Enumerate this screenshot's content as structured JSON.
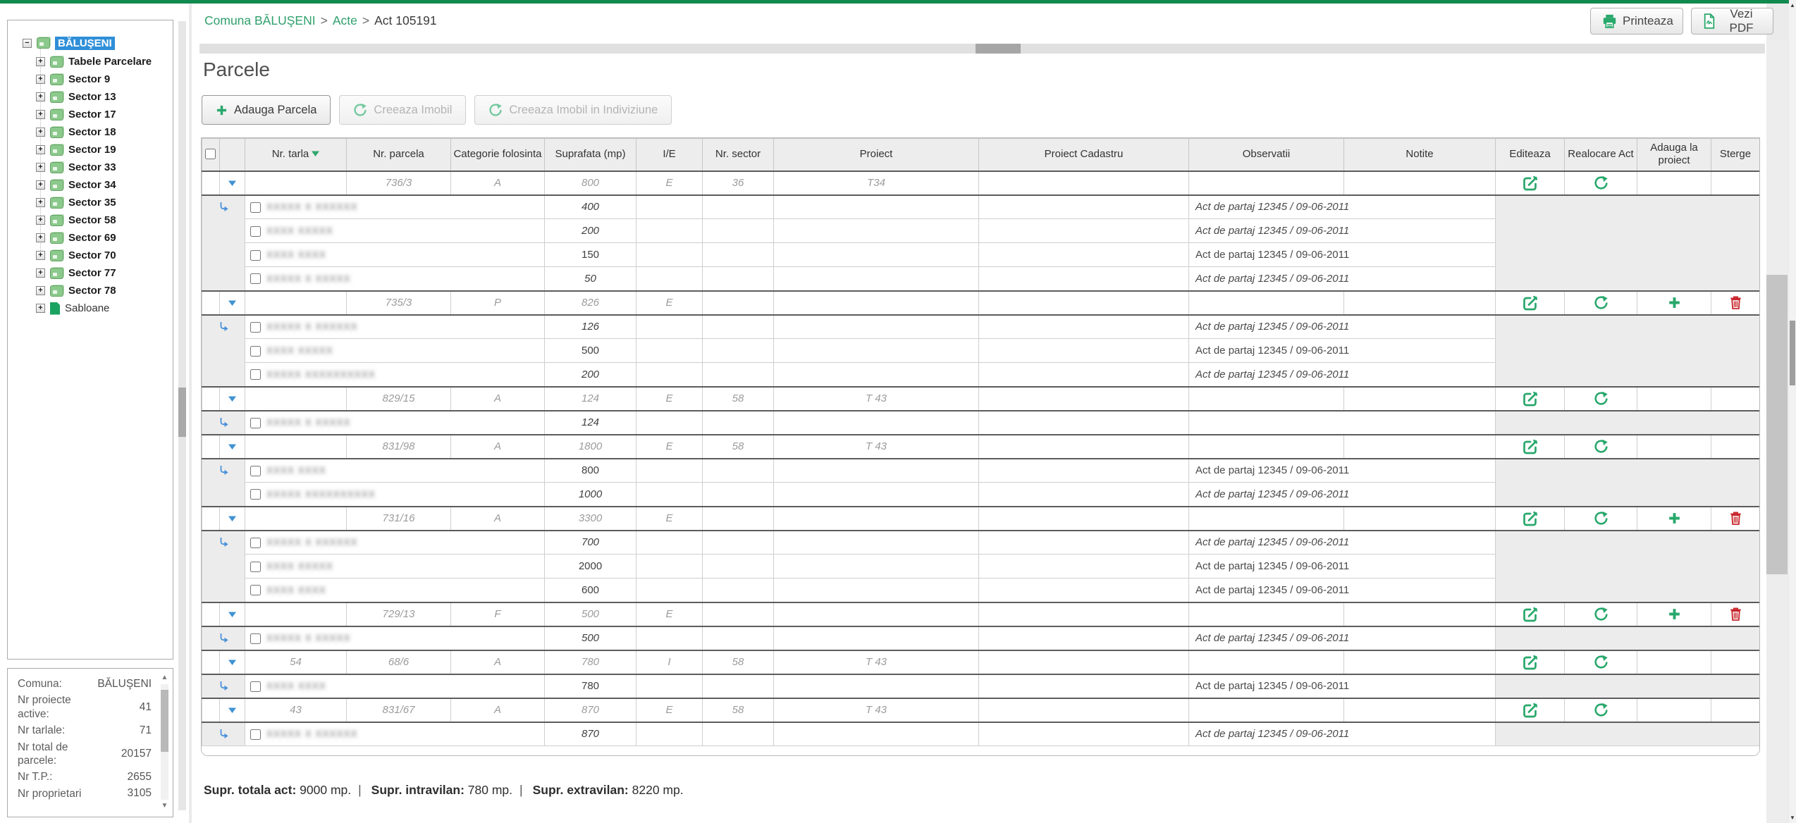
{
  "colors": {
    "accent_green": "#28a86b",
    "link_green": "#2fa06c",
    "selected_blue": "#2f8fd8",
    "delete_red": "#c8272d",
    "top_bar": "#118a4f"
  },
  "breadcrumb": {
    "separator": ">",
    "items": [
      {
        "label": "Comuna BĂLUŞENI",
        "link": true
      },
      {
        "label": "Acte",
        "link": true
      },
      {
        "label": "Act 105191",
        "link": false
      }
    ]
  },
  "header_actions": [
    {
      "label": "Printeaza",
      "icon": "printer-icon"
    },
    {
      "label": "Vezi PDF",
      "icon": "pdf-icon"
    }
  ],
  "sidebar": {
    "tree": {
      "root": {
        "label": "BĂLUŞENI",
        "icon": "folder-stack-icon",
        "expander": "-",
        "selected": true
      },
      "items": [
        {
          "label": "Tabele Parcelare",
          "icon": "folder-stack-icon",
          "bold": true
        },
        {
          "label": "Sector 9",
          "icon": "folder-stack-icon",
          "bold": true
        },
        {
          "label": "Sector 13",
          "icon": "folder-stack-icon",
          "bold": true
        },
        {
          "label": "Sector 17",
          "icon": "folder-stack-icon",
          "bold": true
        },
        {
          "label": "Sector 18",
          "icon": "folder-stack-icon",
          "bold": true
        },
        {
          "label": "Sector 19",
          "icon": "folder-stack-icon",
          "bold": true
        },
        {
          "label": "Sector 33",
          "icon": "folder-stack-icon",
          "bold": true
        },
        {
          "label": "Sector 34",
          "icon": "folder-stack-icon",
          "bold": true
        },
        {
          "label": "Sector 35",
          "icon": "folder-stack-icon",
          "bold": true
        },
        {
          "label": "Sector 58",
          "icon": "folder-stack-icon",
          "bold": true
        },
        {
          "label": "Sector 69",
          "icon": "folder-stack-icon",
          "bold": true
        },
        {
          "label": "Sector 70",
          "icon": "folder-stack-icon",
          "bold": true
        },
        {
          "label": "Sector 77",
          "icon": "folder-stack-icon",
          "bold": true
        },
        {
          "label": "Sector 78",
          "icon": "folder-stack-icon",
          "bold": true
        },
        {
          "label": "Sabloane",
          "icon": "document-icon",
          "bold": false
        }
      ]
    },
    "stats": {
      "rows": [
        {
          "label": "Comuna:",
          "value": "BĂLUŞENI"
        },
        {
          "label": "Nr proiecte active:",
          "value": "41"
        },
        {
          "label": "Nr tarlale:",
          "value": "71"
        },
        {
          "label": "Nr total de parcele:",
          "value": "20157"
        },
        {
          "label": "Nr T.P.:",
          "value": "2655"
        },
        {
          "label": "Nr proprietari",
          "value": "3105"
        }
      ]
    }
  },
  "main": {
    "title": "Parcele",
    "toolbar": [
      {
        "label": "Adauga Parcela",
        "icon": "plus-icon",
        "enabled": true
      },
      {
        "label": "Creeaza Imobil",
        "icon": "create-imobil-icon",
        "enabled": false
      },
      {
        "label": "Creeaza Imobil in Indiviziune",
        "icon": "create-imobil-icon",
        "enabled": false
      }
    ],
    "table": {
      "columns": [
        "",
        "",
        "Nr. tarla",
        "Nr. parcela",
        "Categorie folosinta",
        "Suprafata (mp)",
        "I/E",
        "Nr. sector",
        "Proiect",
        "Proiect Cadastru",
        "Observatii",
        "Notite",
        "Editeaza",
        "Realocare Act",
        "Adauga la proiect",
        "Sterge"
      ],
      "sort_column": "Nr. tarla",
      "groups": [
        {
          "tarla": "",
          "parcela": "736/3",
          "categorie": "A",
          "suprafata": "800",
          "ie": "E",
          "sector": "36",
          "proiect": "T34",
          "proiect_cadastru": "",
          "notite": "",
          "can_add": false,
          "can_delete": false,
          "owners": [
            {
              "name": "XXXXX X XXXXXX",
              "suprafata": "400",
              "observatii": "Act de partaj 12345 / 09-06-2011",
              "italic": true
            },
            {
              "name": "XXXX XXXXX",
              "suprafata": "200",
              "observatii": "Act de partaj 12345 / 09-06-2011",
              "italic": true
            },
            {
              "name": "XXXX XXXX",
              "suprafata": "150",
              "observatii": "Act de partaj 12345 / 09-06-2011",
              "italic": false
            },
            {
              "name": "XXXXX X XXXXX",
              "suprafata": "50",
              "observatii": "Act de partaj 12345 / 09-06-2011",
              "italic": true
            }
          ]
        },
        {
          "tarla": "",
          "parcela": "735/3",
          "categorie": "P",
          "suprafata": "826",
          "ie": "E",
          "sector": "",
          "proiect": "",
          "proiect_cadastru": "",
          "notite": "",
          "can_add": true,
          "can_delete": true,
          "owners": [
            {
              "name": "XXXXX X XXXXXX",
              "suprafata": "126",
              "observatii": "Act de partaj 12345 / 09-06-2011",
              "italic": true
            },
            {
              "name": "XXXX XXXXX",
              "suprafata": "500",
              "observatii": "Act de partaj 12345 / 09-06-2011",
              "italic": false
            },
            {
              "name": "XXXXX XXXXXXXXXX",
              "suprafata": "200",
              "observatii": "Act de partaj 12345 / 09-06-2011",
              "italic": true
            }
          ]
        },
        {
          "tarla": "",
          "parcela": "829/15",
          "categorie": "A",
          "suprafata": "124",
          "ie": "E",
          "sector": "58",
          "proiect": "T 43",
          "proiect_cadastru": "",
          "notite": "",
          "can_add": false,
          "can_delete": false,
          "owners": [
            {
              "name": "XXXXX X XXXXX",
              "suprafata": "124",
              "observatii": "",
              "italic": true
            }
          ]
        },
        {
          "tarla": "",
          "parcela": "831/98",
          "categorie": "A",
          "suprafata": "1800",
          "ie": "E",
          "sector": "58",
          "proiect": "T 43",
          "proiect_cadastru": "",
          "notite": "",
          "can_add": false,
          "can_delete": false,
          "owners": [
            {
              "name": "XXXX XXXX",
              "suprafata": "800",
              "observatii": "Act de partaj 12345 / 09-06-2011",
              "italic": false
            },
            {
              "name": "XXXXX XXXXXXXXXX",
              "suprafata": "1000",
              "observatii": "Act de partaj 12345 / 09-06-2011",
              "italic": true
            }
          ]
        },
        {
          "tarla": "",
          "parcela": "731/16",
          "categorie": "A",
          "suprafata": "3300",
          "ie": "E",
          "sector": "",
          "proiect": "",
          "proiect_cadastru": "",
          "notite": "",
          "can_add": true,
          "can_delete": true,
          "owners": [
            {
              "name": "XXXXX X XXXXXX",
              "suprafata": "700",
              "observatii": "Act de partaj 12345 / 09-06-2011",
              "italic": true
            },
            {
              "name": "XXXX XXXXX",
              "suprafata": "2000",
              "observatii": "Act de partaj 12345 / 09-06-2011",
              "italic": false
            },
            {
              "name": "XXXX XXXX",
              "suprafata": "600",
              "observatii": "Act de partaj 12345 / 09-06-2011",
              "italic": false
            }
          ]
        },
        {
          "tarla": "",
          "parcela": "729/13",
          "categorie": "F",
          "suprafata": "500",
          "ie": "E",
          "sector": "",
          "proiect": "",
          "proiect_cadastru": "",
          "notite": "",
          "can_add": true,
          "can_delete": true,
          "owners": [
            {
              "name": "XXXXX X XXXXX",
              "suprafata": "500",
              "observatii": "Act de partaj 12345 / 09-06-2011",
              "italic": true
            }
          ]
        },
        {
          "tarla": "54",
          "parcela": "68/6",
          "categorie": "A",
          "suprafata": "780",
          "ie": "I",
          "sector": "58",
          "proiect": "T 43",
          "proiect_cadastru": "",
          "notite": "",
          "can_add": false,
          "can_delete": false,
          "owners": [
            {
              "name": "XXXX XXXX",
              "suprafata": "780",
              "observatii": "Act de partaj 12345 / 09-06-2011",
              "italic": false
            }
          ]
        },
        {
          "tarla": "43",
          "parcela": "831/67",
          "categorie": "A",
          "suprafata": "870",
          "ie": "E",
          "sector": "58",
          "proiect": "T 43",
          "proiect_cadastru": "",
          "notite": "",
          "can_add": false,
          "can_delete": false,
          "owners": [
            {
              "name": "XXXXX X XXXXXX",
              "suprafata": "870",
              "observatii": "Act de partaj 12345 / 09-06-2011",
              "italic": true
            }
          ]
        }
      ],
      "totals": [
        {
          "label": "Supr. totala act:",
          "value": "9000 mp."
        },
        {
          "label": "Supr. intravilan:",
          "value": "780 mp."
        },
        {
          "label": "Supr. extravilan:",
          "value": "8220 mp."
        }
      ]
    }
  }
}
